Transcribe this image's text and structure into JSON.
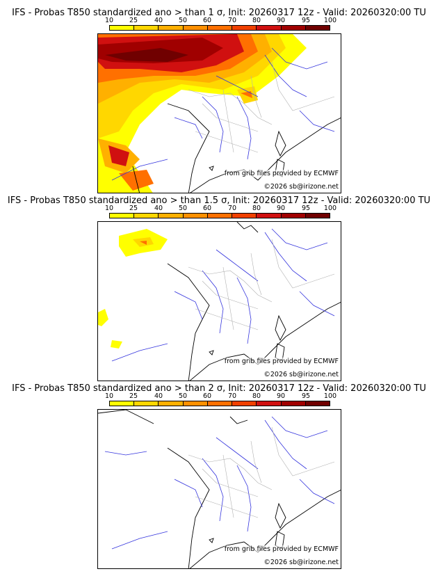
{
  "panels": [
    {
      "title": "IFS - Probas T850  standardized ano > than 1 σ, Init: 20260317 12z - Valid: 20260320:00 TU"
    },
    {
      "title": "IFS - Probas T850  standardized ano > than 1.5 σ, Init: 20260317 12z - Valid: 20260320:00 TU"
    },
    {
      "title": "IFS - Probas T850  standardized ano > than 2 σ, Init: 20260317 12z - Valid: 20260320:00 TU"
    }
  ],
  "legend": {
    "ticks": [
      "10",
      "25",
      "40",
      "50",
      "60",
      "70",
      "80",
      "90",
      "95",
      "100"
    ],
    "colors": [
      "#ffff00",
      "#ffd700",
      "#ffb000",
      "#ff9000",
      "#ff7000",
      "#f04000",
      "#d01010",
      "#a00000",
      "#700000"
    ]
  },
  "credits": {
    "source": "from grib files provided by ECMWF",
    "copyright": "©2026 sb@irizone.net"
  },
  "colors": {
    "coast": "#000000",
    "rivers": "#3333dd",
    "regions": "#b0b0b0"
  }
}
